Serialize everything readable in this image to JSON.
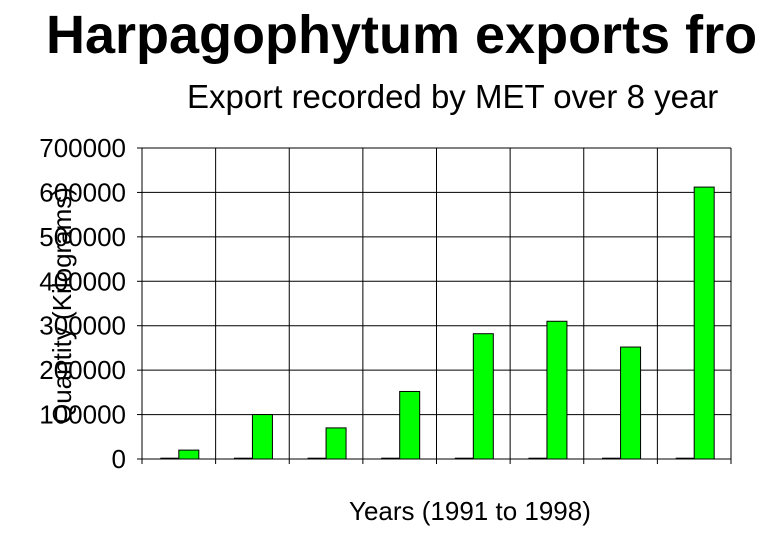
{
  "chart_data": {
    "type": "bar",
    "title": "Harpagophytum exports fro",
    "subtitle": "Export recorded by MET over 8 year",
    "xlabel": "Years (1991 to 1998)",
    "ylabel": "Quantity (Kilograms)",
    "ylim": [
      0,
      700000
    ],
    "yticks": [
      "0",
      "100000",
      "200000",
      "300000",
      "400000",
      "500000",
      "600000",
      "700000"
    ],
    "categories": [
      "",
      "",
      "",
      "",
      "",
      "",
      "",
      ""
    ],
    "series": [
      {
        "values": [
          0,
          0,
          0,
          0,
          0,
          0,
          0,
          0
        ],
        "color": "#000000"
      },
      {
        "values": [
          20000,
          100000,
          70000,
          152000,
          282000,
          310000,
          252000,
          612000
        ],
        "color": "#00ff00"
      }
    ],
    "grid": true,
    "legend": "none"
  }
}
